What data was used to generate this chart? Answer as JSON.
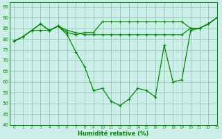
{
  "background_color": "#cceee8",
  "grid_color": "#99ccbb",
  "line_color": "#008800",
  "xlabel": "Humidité relative (%)",
  "xlabel_color": "#008800",
  "xlim": [
    -0.5,
    23
  ],
  "ylim": [
    40,
    97
  ],
  "yticks": [
    40,
    45,
    50,
    55,
    60,
    65,
    70,
    75,
    80,
    85,
    90,
    95
  ],
  "xticks": [
    0,
    1,
    2,
    3,
    4,
    5,
    6,
    7,
    8,
    9,
    10,
    11,
    12,
    13,
    14,
    15,
    16,
    17,
    18,
    19,
    20,
    21,
    22,
    23
  ],
  "curve1_x": [
    0,
    1,
    2,
    3,
    4,
    5,
    6,
    7,
    8,
    9,
    10,
    11,
    12,
    13,
    14,
    15,
    16,
    17,
    18,
    19,
    20,
    21,
    22,
    23
  ],
  "curve1_y": [
    79,
    81,
    84,
    84,
    84,
    86,
    84,
    83,
    82,
    82,
    82,
    82,
    82,
    82,
    82,
    82,
    82,
    82,
    82,
    82,
    85,
    85,
    87,
    90
  ],
  "curve2_x": [
    0,
    1,
    2,
    3,
    4,
    5,
    6,
    7,
    8,
    9,
    10,
    11,
    12,
    13,
    14,
    15,
    16,
    17,
    18,
    19,
    20,
    21,
    22,
    23
  ],
  "curve2_y": [
    79,
    81,
    84,
    87,
    84,
    86,
    83,
    82,
    83,
    83,
    88,
    88,
    88,
    88,
    88,
    88,
    88,
    88,
    88,
    88,
    85,
    85,
    87,
    90
  ],
  "curve3_x": [
    0,
    1,
    2,
    3,
    4,
    5,
    6,
    7,
    8,
    9,
    10,
    11,
    12,
    13,
    14,
    15,
    16,
    17,
    18,
    19,
    20,
    21,
    22,
    23
  ],
  "curve3_y": [
    79,
    81,
    84,
    87,
    84,
    86,
    82,
    74,
    67,
    56,
    57,
    51,
    49,
    52,
    57,
    56,
    53,
    77,
    60,
    61,
    84,
    85,
    87,
    90
  ]
}
